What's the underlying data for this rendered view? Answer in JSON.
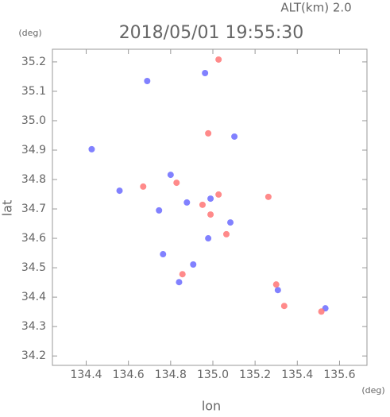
{
  "chart_data": {
    "type": "scatter",
    "title": "2018/05/01 19:55:30",
    "subtitle": "ALT(km) 2.0",
    "ylabel": "lat",
    "y_unit": "(deg)",
    "xlabel": "lon",
    "x_unit": "(deg)",
    "xlim": [
      134.24,
      135.73
    ],
    "ylim": [
      34.168,
      35.243
    ],
    "xticks": [
      134.4,
      134.6,
      134.8,
      {
        "value": 135,
        "label": "135.0"
      },
      135.2,
      135.4,
      135.6
    ],
    "yticks": [
      34.2,
      34.3,
      34.4,
      34.5,
      34.6,
      34.7,
      34.8,
      34.9,
      {
        "value": 35,
        "label": "35.0"
      },
      35.1,
      35.2
    ],
    "series": [
      {
        "color": "#6b6bff",
        "x": [
          134.689,
          134.558,
          134.8,
          134.877,
          134.989,
          135.083,
          134.764,
          134.907,
          134.84,
          134.978,
          135.308,
          135.533,
          134.745,
          134.426,
          134.963,
          135.102
        ],
        "values": [
          35.135,
          34.762,
          34.816,
          34.722,
          34.735,
          34.654,
          34.546,
          34.511,
          34.451,
          34.6,
          34.424,
          34.362,
          34.695,
          34.903,
          35.162,
          34.946
        ]
      },
      {
        "color": "#ff7676",
        "x": [
          135.027,
          134.978,
          134.828,
          134.67,
          135.027,
          135.064,
          134.989,
          135.263,
          135.3,
          135.338,
          134.856,
          135.514,
          134.951
        ],
        "values": [
          35.208,
          34.957,
          34.789,
          34.776,
          34.749,
          34.614,
          34.681,
          34.741,
          34.443,
          34.37,
          34.478,
          34.351,
          34.714
        ]
      }
    ]
  }
}
